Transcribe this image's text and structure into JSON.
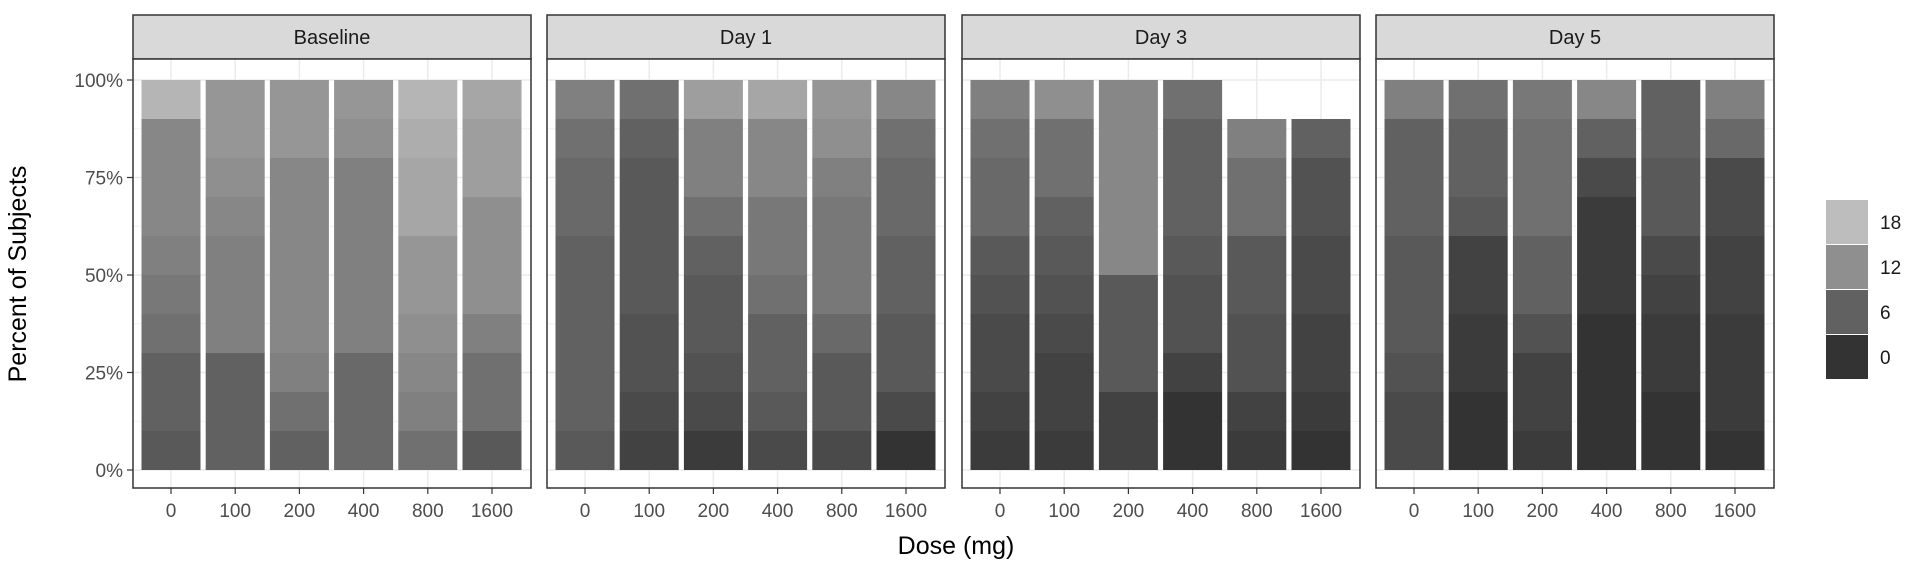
{
  "chart_data": {
    "type": "bar",
    "stacked": true,
    "percent": true,
    "xlabel": "Dose (mg)",
    "ylabel": "Percent of Subjects",
    "yticks": [
      "0%",
      "25%",
      "50%",
      "75%",
      "100%"
    ],
    "ylim": [
      0,
      100
    ],
    "grid": true,
    "categories": [
      "0",
      "100",
      "200",
      "400",
      "800",
      "1600"
    ],
    "legend": {
      "position": "right",
      "breaks": [
        "18",
        "12",
        "6",
        "0"
      ],
      "scale": {
        "min": 0,
        "max": 20,
        "low_color": "#333333",
        "high_color": "#cccccc"
      }
    },
    "panels": [
      {
        "label": "Baseline",
        "bars": [
          [
            {
              "v": 5,
              "p": 10
            },
            {
              "v": 6,
              "p": 20
            },
            {
              "v": 8,
              "p": 10
            },
            {
              "v": 9,
              "p": 10
            },
            {
              "v": 10,
              "p": 10
            },
            {
              "v": 11,
              "p": 10
            },
            {
              "v": 11,
              "p": 20
            },
            {
              "v": 17,
              "p": 10
            }
          ],
          [
            {
              "v": 6,
              "p": 30
            },
            {
              "v": 10,
              "p": 30
            },
            {
              "v": 11,
              "p": 10
            },
            {
              "v": 12,
              "p": 10
            },
            {
              "v": 13,
              "p": 20
            }
          ],
          [
            {
              "v": 6,
              "p": 10
            },
            {
              "v": 8,
              "p": 10
            },
            {
              "v": 10,
              "p": 10
            },
            {
              "v": 11,
              "p": 50
            },
            {
              "v": 13,
              "p": 20
            }
          ],
          [
            {
              "v": 7,
              "p": 30
            },
            {
              "v": 10,
              "p": 50
            },
            {
              "v": 12,
              "p": 10
            },
            {
              "v": 13,
              "p": 10
            }
          ],
          [
            {
              "v": 8,
              "p": 10
            },
            {
              "v": 10,
              "p": 10
            },
            {
              "v": 11,
              "p": 10
            },
            {
              "v": 12,
              "p": 10
            },
            {
              "v": 13,
              "p": 20
            },
            {
              "v": 15,
              "p": 20
            },
            {
              "v": 16,
              "p": 10
            },
            {
              "v": 17,
              "p": 10
            }
          ],
          [
            {
              "v": 5,
              "p": 10
            },
            {
              "v": 8,
              "p": 20
            },
            {
              "v": 10,
              "p": 10
            },
            {
              "v": 12,
              "p": 30
            },
            {
              "v": 14,
              "p": 20
            },
            {
              "v": 15,
              "p": 10
            }
          ]
        ]
      },
      {
        "label": "Day 1",
        "bars": [
          [
            {
              "v": 5,
              "p": 10
            },
            {
              "v": 6,
              "p": 30
            },
            {
              "v": 6,
              "p": 20
            },
            {
              "v": 7,
              "p": 20
            },
            {
              "v": 8,
              "p": 10
            },
            {
              "v": 10,
              "p": 10
            }
          ],
          [
            {
              "v": 2,
              "p": 10
            },
            {
              "v": 3,
              "p": 10
            },
            {
              "v": 4,
              "p": 20
            },
            {
              "v": 5,
              "p": 40
            },
            {
              "v": 6,
              "p": 10
            },
            {
              "v": 8,
              "p": 10
            }
          ],
          [
            {
              "v": 1,
              "p": 10
            },
            {
              "v": 3,
              "p": 10
            },
            {
              "v": 4,
              "p": 10
            },
            {
              "v": 5,
              "p": 20
            },
            {
              "v": 6,
              "p": 10
            },
            {
              "v": 8,
              "p": 10
            },
            {
              "v": 10,
              "p": 20
            },
            {
              "v": 14,
              "p": 10
            }
          ],
          [
            {
              "v": 3,
              "p": 10
            },
            {
              "v": 5,
              "p": 10
            },
            {
              "v": 6,
              "p": 20
            },
            {
              "v": 8,
              "p": 10
            },
            {
              "v": 9,
              "p": 20
            },
            {
              "v": 11,
              "p": 20
            },
            {
              "v": 15,
              "p": 10
            }
          ],
          [
            {
              "v": 3,
              "p": 10
            },
            {
              "v": 5,
              "p": 20
            },
            {
              "v": 7,
              "p": 10
            },
            {
              "v": 9,
              "p": 30
            },
            {
              "v": 10,
              "p": 10
            },
            {
              "v": 12,
              "p": 10
            },
            {
              "v": 13,
              "p": 10
            }
          ],
          [
            {
              "v": 0,
              "p": 10
            },
            {
              "v": 3,
              "p": 10
            },
            {
              "v": 5,
              "p": 20
            },
            {
              "v": 6,
              "p": 20
            },
            {
              "v": 7,
              "p": 20
            },
            {
              "v": 8,
              "p": 10
            },
            {
              "v": 11,
              "p": 10
            }
          ]
        ]
      },
      {
        "label": "Day 3",
        "bars": [
          [
            {
              "v": 1,
              "p": 10
            },
            {
              "v": 2,
              "p": 10
            },
            {
              "v": 3,
              "p": 20
            },
            {
              "v": 4,
              "p": 10
            },
            {
              "v": 5,
              "p": 10
            },
            {
              "v": 7,
              "p": 20
            },
            {
              "v": 8,
              "p": 10
            },
            {
              "v": 10,
              "p": 10
            }
          ],
          [
            {
              "v": 1,
              "p": 10
            },
            {
              "v": 2,
              "p": 20
            },
            {
              "v": 3,
              "p": 10
            },
            {
              "v": 4,
              "p": 10
            },
            {
              "v": 5,
              "p": 10
            },
            {
              "v": 6,
              "p": 10
            },
            {
              "v": 8,
              "p": 20
            },
            {
              "v": 12,
              "p": 10
            }
          ],
          [
            {
              "v": 2,
              "p": 20
            },
            {
              "v": 5,
              "p": 30
            },
            {
              "v": 11,
              "p": 50
            }
          ],
          [
            {
              "v": 0,
              "p": 20
            },
            {
              "v": 2,
              "p": 10
            },
            {
              "v": 4,
              "p": 20
            },
            {
              "v": 5,
              "p": 10
            },
            {
              "v": 6,
              "p": 30
            },
            {
              "v": 8,
              "p": 10
            }
          ],
          [
            {
              "v": 1,
              "p": 10
            },
            {
              "v": 2,
              "p": 10
            },
            {
              "v": 4,
              "p": 20
            },
            {
              "v": 5,
              "p": 20
            },
            {
              "v": 8,
              "p": 20
            },
            {
              "v": 10,
              "p": 10
            }
          ],
          [
            {
              "v": 0,
              "p": 10
            },
            {
              "v": 1,
              "p": 10
            },
            {
              "v": 2,
              "p": 20
            },
            {
              "v": 3,
              "p": 20
            },
            {
              "v": 4,
              "p": 20
            },
            {
              "v": 6,
              "p": 10
            }
          ]
        ]
      },
      {
        "label": "Day 5",
        "bars": [
          [
            {
              "v": 3,
              "p": 20
            },
            {
              "v": 4,
              "p": 10
            },
            {
              "v": 5,
              "p": 30
            },
            {
              "v": 6,
              "p": 30
            },
            {
              "v": 10,
              "p": 10
            }
          ],
          [
            {
              "v": 0,
              "p": 20
            },
            {
              "v": 1,
              "p": 20
            },
            {
              "v": 2,
              "p": 20
            },
            {
              "v": 5,
              "p": 10
            },
            {
              "v": 6,
              "p": 20
            },
            {
              "v": 8,
              "p": 10
            }
          ],
          [
            {
              "v": 1,
              "p": 10
            },
            {
              "v": 2,
              "p": 20
            },
            {
              "v": 4,
              "p": 10
            },
            {
              "v": 6,
              "p": 20
            },
            {
              "v": 8,
              "p": 30
            },
            {
              "v": 9,
              "p": 10
            }
          ],
          [
            {
              "v": 0,
              "p": 40
            },
            {
              "v": 1,
              "p": 30
            },
            {
              "v": 3,
              "p": 10
            },
            {
              "v": 6,
              "p": 10
            },
            {
              "v": 11,
              "p": 10
            }
          ],
          [
            {
              "v": 0,
              "p": 20
            },
            {
              "v": 1,
              "p": 20
            },
            {
              "v": 2,
              "p": 10
            },
            {
              "v": 3,
              "p": 10
            },
            {
              "v": 5,
              "p": 20
            },
            {
              "v": 6,
              "p": 20
            }
          ],
          [
            {
              "v": 0,
              "p": 10
            },
            {
              "v": 1,
              "p": 30
            },
            {
              "v": 2,
              "p": 20
            },
            {
              "v": 3,
              "p": 20
            },
            {
              "v": 7,
              "p": 10
            },
            {
              "v": 10,
              "p": 10
            }
          ]
        ]
      }
    ]
  }
}
